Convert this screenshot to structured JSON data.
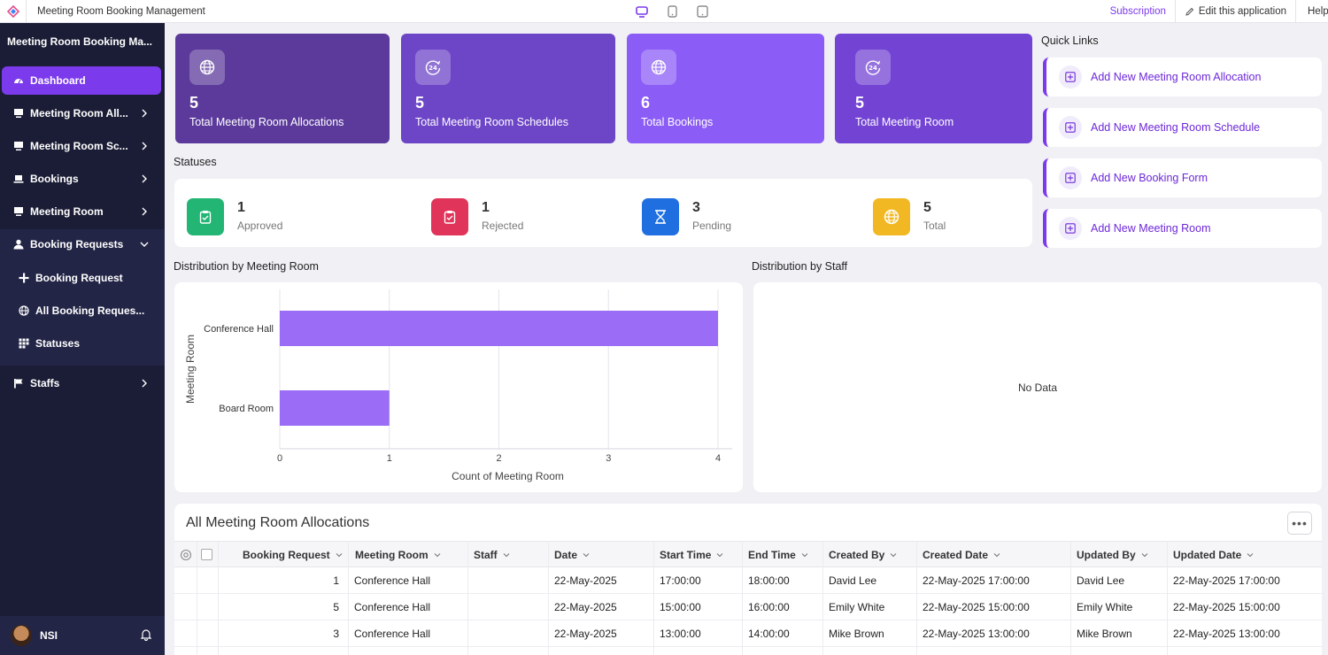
{
  "topbar": {
    "app_title": "Meeting Room Booking Management",
    "subscription": "Subscription",
    "edit_app": "Edit this application",
    "help": "Help"
  },
  "sidebar": {
    "title": "Meeting Room Booking Ma...",
    "items": [
      {
        "label": "Dashboard",
        "icon": "dashboard-icon"
      },
      {
        "label": "Meeting Room All...",
        "icon": "monitor-icon"
      },
      {
        "label": "Meeting Room Sc...",
        "icon": "monitor-icon"
      },
      {
        "label": "Bookings",
        "icon": "laptop-icon"
      },
      {
        "label": "Meeting Room",
        "icon": "monitor-icon"
      },
      {
        "label": "Booking Requests",
        "icon": "user-icon"
      },
      {
        "label": "Staffs",
        "icon": "flag-icon"
      }
    ],
    "sub_items": [
      {
        "label": "Booking Request",
        "icon": "plus-icon"
      },
      {
        "label": "All Booking Reques...",
        "icon": "globe-icon"
      },
      {
        "label": "Statuses",
        "icon": "grid-icon"
      }
    ],
    "user": "NSI"
  },
  "stats": [
    {
      "value": "5",
      "label": "Total Meeting Room Allocations",
      "color": "#5b3a9b"
    },
    {
      "value": "5",
      "label": "Total Meeting Room Schedules",
      "color": "#6d45c7"
    },
    {
      "value": "6",
      "label": "Total Bookings",
      "color": "#8b5cf6"
    },
    {
      "value": "5",
      "label": "Total Meeting Room",
      "color": "#7343d4"
    }
  ],
  "statuses": {
    "title": "Statuses",
    "items": [
      {
        "value": "1",
        "label": "Approved",
        "color": "#22b573"
      },
      {
        "value": "1",
        "label": "Rejected",
        "color": "#e0345a"
      },
      {
        "value": "3",
        "label": "Pending",
        "color": "#1f6fe0"
      },
      {
        "value": "5",
        "label": "Total",
        "color": "#f2b824"
      }
    ]
  },
  "quick_links": {
    "title": "Quick Links",
    "items": [
      "Add New Meeting Room Allocation",
      "Add New Meeting Room Schedule",
      "Add New Booking Form",
      "Add New Meeting Room"
    ]
  },
  "charts": {
    "room_title": "Distribution by Meeting Room",
    "staff_title": "Distribution by Staff",
    "no_data": "No Data"
  },
  "chart_data": [
    {
      "type": "bar",
      "orientation": "horizontal",
      "categories": [
        "Conference Hall",
        "Board Room"
      ],
      "values": [
        4,
        1
      ],
      "xlabel": "Count of Meeting Room",
      "ylabel": "Meeting Room",
      "xlim": [
        0,
        4
      ],
      "x_ticks": [
        "0",
        "1",
        "2",
        "3",
        "4"
      ],
      "bar_color": "#9b6cf5",
      "grid": true
    }
  ],
  "table": {
    "title": "All Meeting Room Allocations",
    "more": "•••",
    "columns": [
      "Booking Request",
      "Meeting Room",
      "Staff",
      "Date",
      "Start Time",
      "End Time",
      "Created By",
      "Created Date",
      "Updated By",
      "Updated Date"
    ],
    "rows": [
      {
        "booking_request": "1",
        "meeting_room": "Conference Hall",
        "staff": "",
        "date": "22-May-2025",
        "start": "17:00:00",
        "end": "18:00:00",
        "created_by": "David Lee",
        "created_date": "22-May-2025 17:00:00",
        "updated_by": "David Lee",
        "updated_date": "22-May-2025 17:00:00"
      },
      {
        "booking_request": "5",
        "meeting_room": "Conference Hall",
        "staff": "",
        "date": "22-May-2025",
        "start": "15:00:00",
        "end": "16:00:00",
        "created_by": "Emily White",
        "created_date": "22-May-2025 15:00:00",
        "updated_by": "Emily White",
        "updated_date": "22-May-2025 15:00:00"
      },
      {
        "booking_request": "3",
        "meeting_room": "Conference Hall",
        "staff": "",
        "date": "22-May-2025",
        "start": "13:00:00",
        "end": "14:00:00",
        "created_by": "Mike Brown",
        "created_date": "22-May-2025 13:00:00",
        "updated_by": "Mike Brown",
        "updated_date": "22-May-2025 13:00:00"
      }
    ]
  }
}
